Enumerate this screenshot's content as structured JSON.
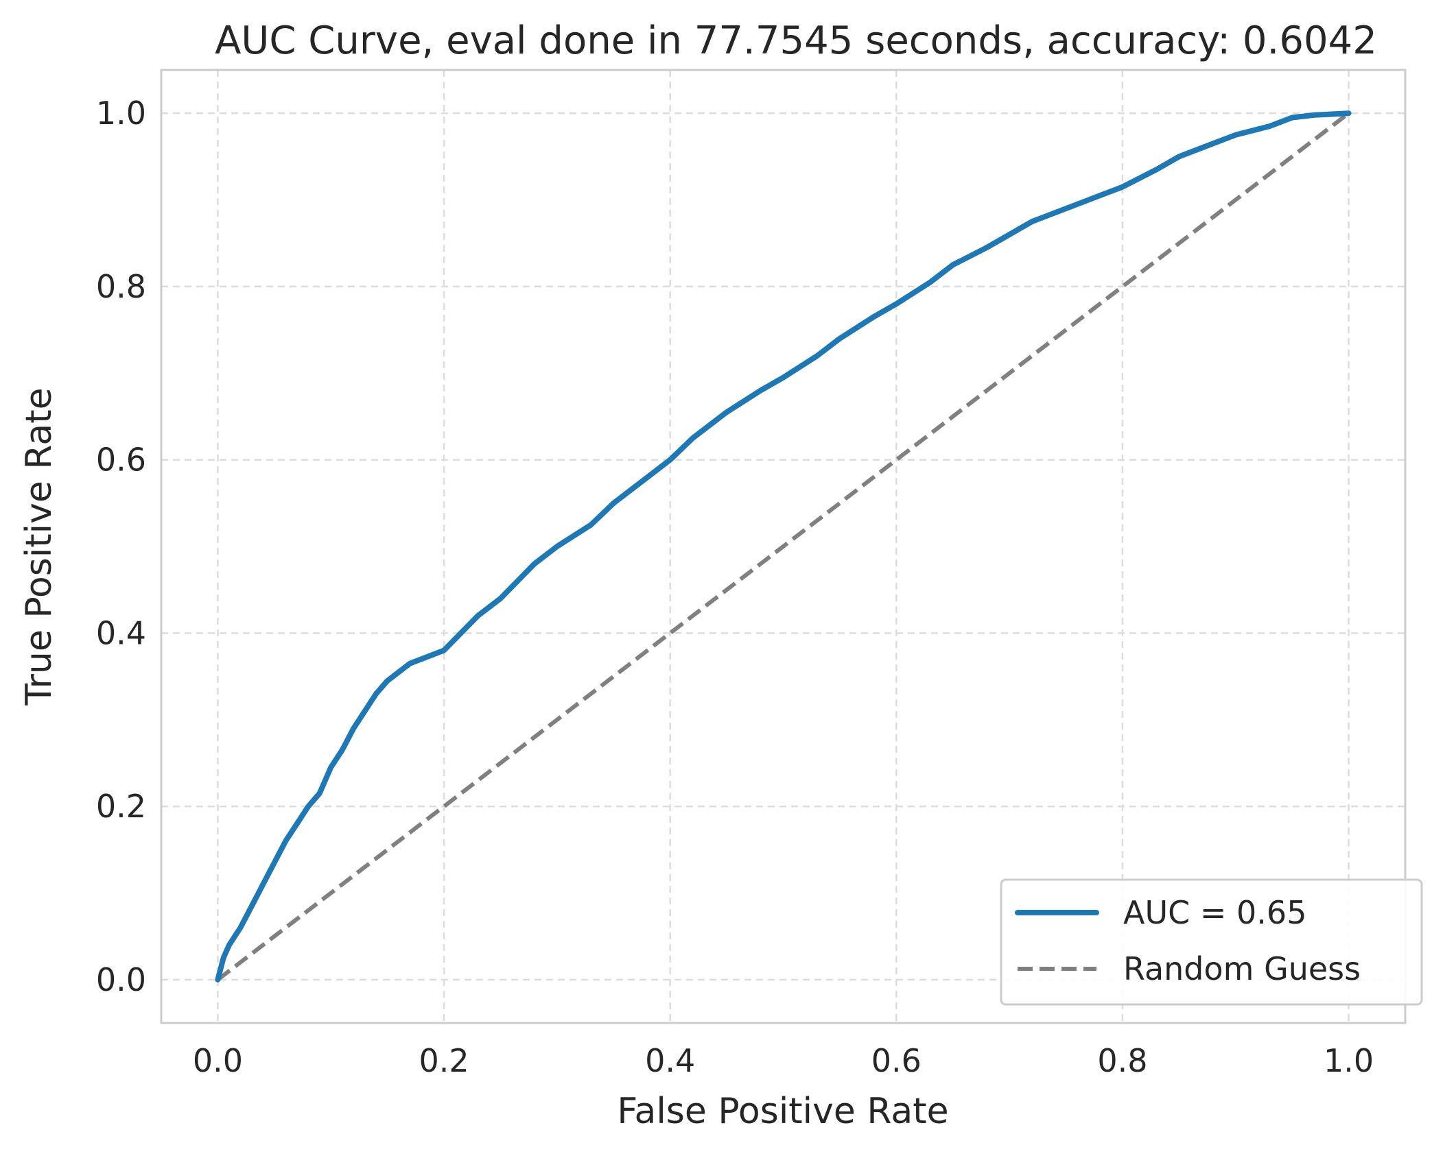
{
  "chart_data": {
    "type": "line",
    "title": "AUC Curve, eval done in 77.7545 seconds, accuracy: 0.6042",
    "xlabel": "False Positive Rate",
    "ylabel": "True Positive Rate",
    "xlim": [
      -0.05,
      1.05
    ],
    "ylim": [
      -0.05,
      1.05
    ],
    "x_ticks": [
      "0.0",
      "0.2",
      "0.4",
      "0.6",
      "0.8",
      "1.0"
    ],
    "y_ticks": [
      "0.0",
      "0.2",
      "0.4",
      "0.6",
      "0.8",
      "1.0"
    ],
    "grid": true,
    "grid_style": "dashed",
    "legend_position": "lower-right",
    "series": [
      {
        "name": "AUC = 0.65",
        "color": "#1f77b4",
        "style": "solid",
        "x": [
          0.0,
          0.005,
          0.01,
          0.02,
          0.03,
          0.04,
          0.05,
          0.06,
          0.07,
          0.08,
          0.09,
          0.1,
          0.11,
          0.12,
          0.13,
          0.14,
          0.15,
          0.17,
          0.2,
          0.23,
          0.25,
          0.28,
          0.3,
          0.33,
          0.35,
          0.38,
          0.4,
          0.42,
          0.45,
          0.48,
          0.5,
          0.53,
          0.55,
          0.58,
          0.6,
          0.63,
          0.65,
          0.68,
          0.7,
          0.72,
          0.75,
          0.78,
          0.8,
          0.83,
          0.85,
          0.88,
          0.9,
          0.93,
          0.95,
          0.97,
          1.0
        ],
        "y": [
          0.0,
          0.025,
          0.04,
          0.06,
          0.085,
          0.11,
          0.135,
          0.16,
          0.18,
          0.2,
          0.215,
          0.245,
          0.265,
          0.29,
          0.31,
          0.33,
          0.345,
          0.365,
          0.38,
          0.42,
          0.44,
          0.48,
          0.5,
          0.525,
          0.55,
          0.58,
          0.6,
          0.625,
          0.655,
          0.68,
          0.695,
          0.72,
          0.74,
          0.765,
          0.78,
          0.805,
          0.825,
          0.845,
          0.86,
          0.875,
          0.89,
          0.905,
          0.915,
          0.935,
          0.95,
          0.965,
          0.975,
          0.985,
          0.995,
          0.998,
          1.0
        ]
      },
      {
        "name": "Random Guess",
        "color": "#808080",
        "style": "dashed",
        "x": [
          0.0,
          1.0
        ],
        "y": [
          0.0,
          1.0
        ]
      }
    ]
  }
}
